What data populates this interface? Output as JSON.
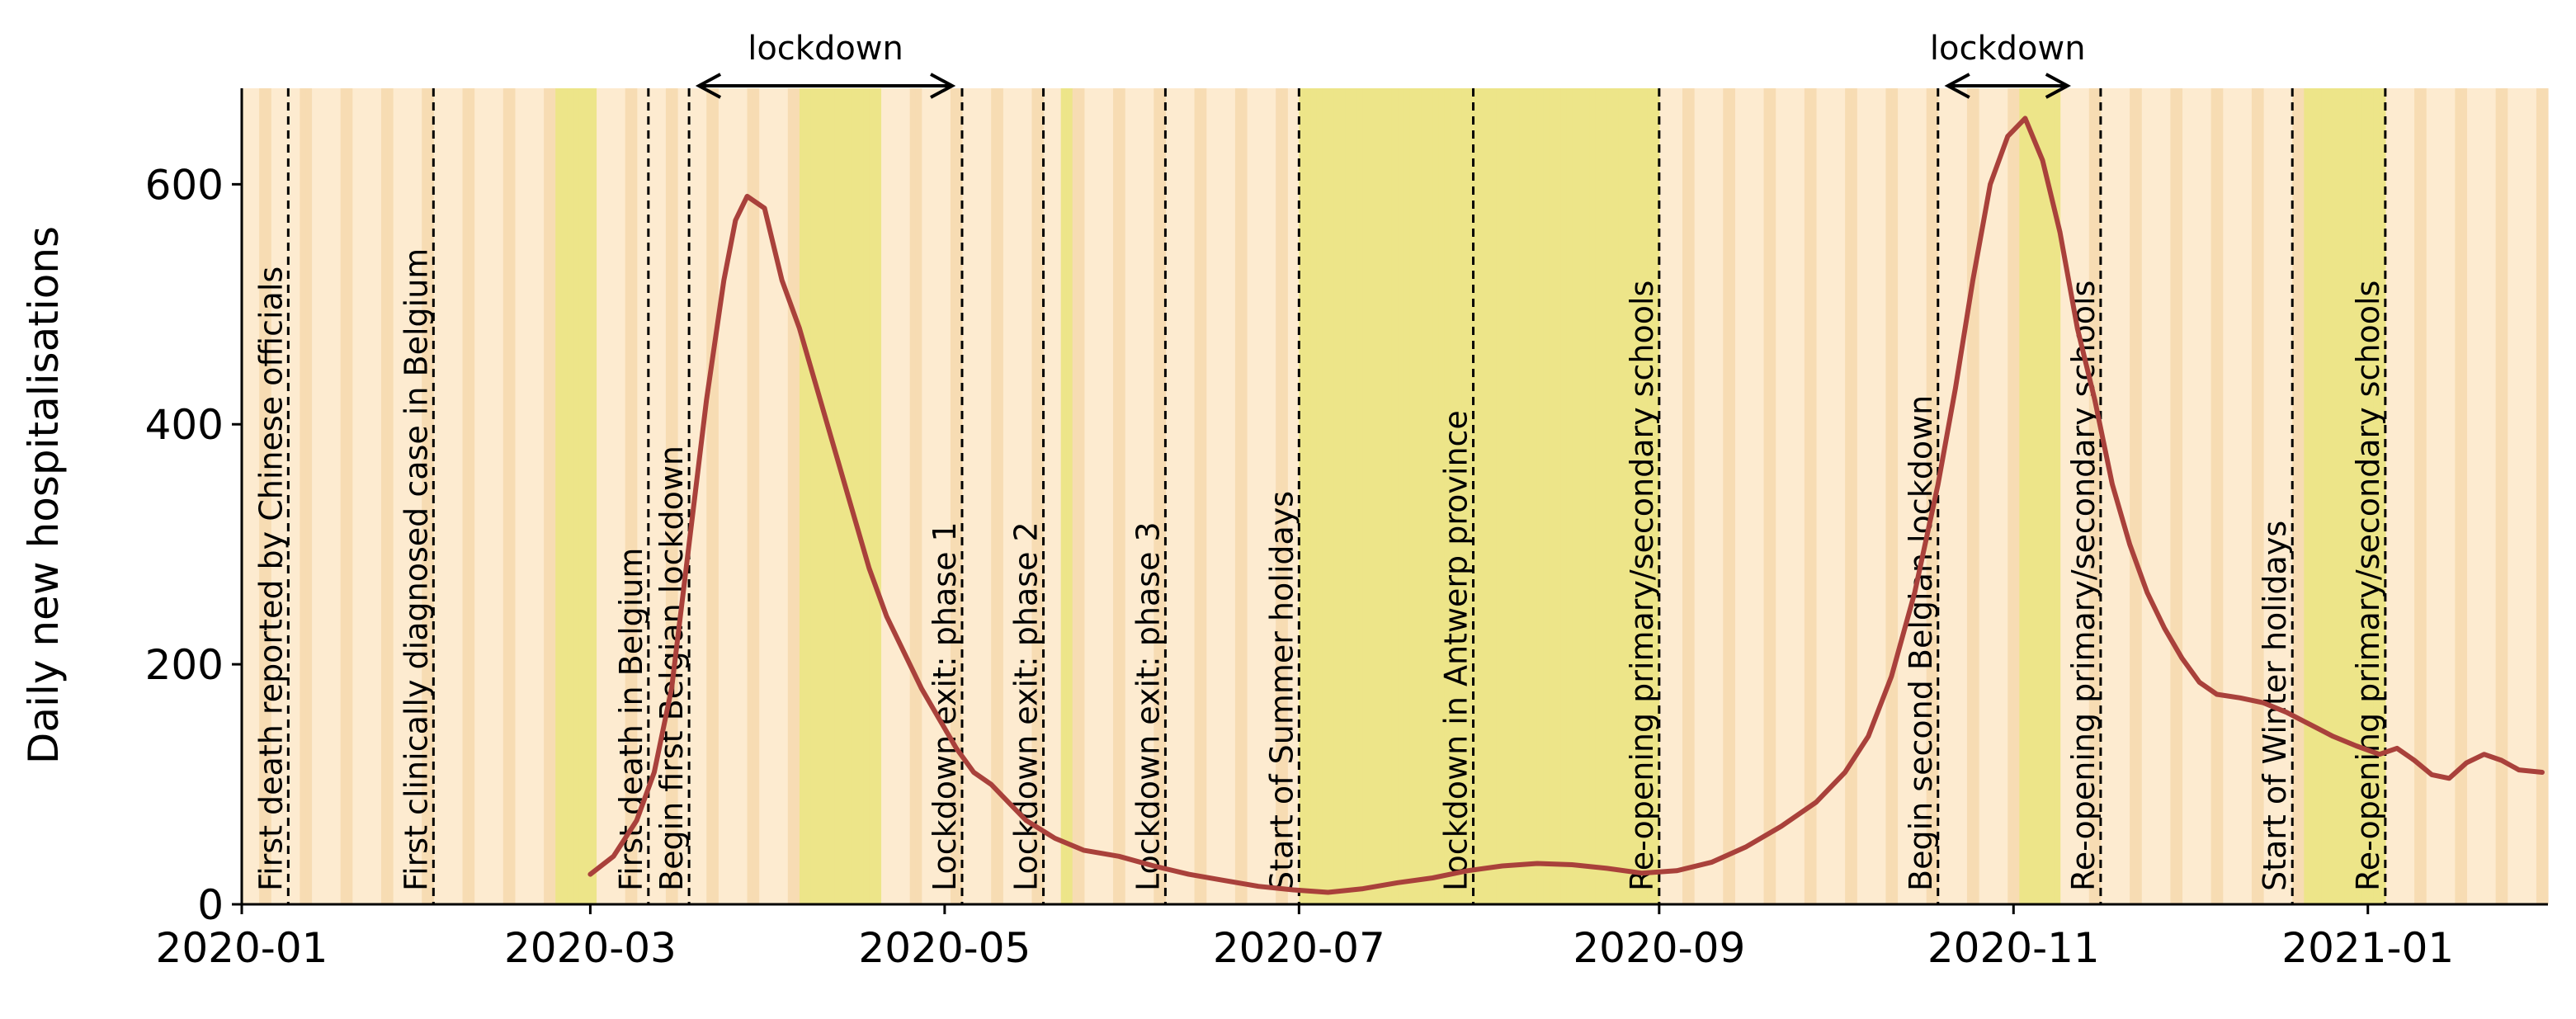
{
  "chart_data": {
    "type": "line",
    "title": "",
    "xlabel": "",
    "ylabel": "Daily new hospitalisations",
    "xlim": [
      "2020-01-01",
      "2021-02-01"
    ],
    "ylim": [
      0,
      680
    ],
    "x_ticks": [
      {
        "date": "2020-01-01",
        "label": "2020-01"
      },
      {
        "date": "2020-03-01",
        "label": "2020-03"
      },
      {
        "date": "2020-05-01",
        "label": "2020-05"
      },
      {
        "date": "2020-07-01",
        "label": "2020-07"
      },
      {
        "date": "2020-09-01",
        "label": "2020-09"
      },
      {
        "date": "2020-11-01",
        "label": "2020-11"
      },
      {
        "date": "2021-01-01",
        "label": "2021-01"
      }
    ],
    "y_ticks": [
      {
        "value": 0,
        "label": "0"
      },
      {
        "value": 200,
        "label": "200"
      },
      {
        "value": 400,
        "label": "400"
      },
      {
        "value": 600,
        "label": "600"
      }
    ],
    "grid": false,
    "series": [
      {
        "color": "#a9413b",
        "points": [
          [
            "2020-03-01",
            25
          ],
          [
            "2020-03-05",
            40
          ],
          [
            "2020-03-09",
            70
          ],
          [
            "2020-03-12",
            110
          ],
          [
            "2020-03-15",
            180
          ],
          [
            "2020-03-18",
            300
          ],
          [
            "2020-03-21",
            420
          ],
          [
            "2020-03-24",
            520
          ],
          [
            "2020-03-26",
            570
          ],
          [
            "2020-03-28",
            590
          ],
          [
            "2020-03-31",
            580
          ],
          [
            "2020-04-03",
            520
          ],
          [
            "2020-04-06",
            480
          ],
          [
            "2020-04-09",
            430
          ],
          [
            "2020-04-12",
            380
          ],
          [
            "2020-04-15",
            330
          ],
          [
            "2020-04-18",
            280
          ],
          [
            "2020-04-21",
            240
          ],
          [
            "2020-04-24",
            210
          ],
          [
            "2020-04-27",
            180
          ],
          [
            "2020-04-30",
            155
          ],
          [
            "2020-05-03",
            130
          ],
          [
            "2020-05-06",
            110
          ],
          [
            "2020-05-09",
            100
          ],
          [
            "2020-05-12",
            85
          ],
          [
            "2020-05-15",
            70
          ],
          [
            "2020-05-20",
            55
          ],
          [
            "2020-05-25",
            45
          ],
          [
            "2020-05-31",
            40
          ],
          [
            "2020-06-06",
            32
          ],
          [
            "2020-06-12",
            25
          ],
          [
            "2020-06-18",
            20
          ],
          [
            "2020-06-24",
            15
          ],
          [
            "2020-06-30",
            12
          ],
          [
            "2020-07-06",
            10
          ],
          [
            "2020-07-12",
            13
          ],
          [
            "2020-07-18",
            18
          ],
          [
            "2020-07-24",
            22
          ],
          [
            "2020-07-30",
            28
          ],
          [
            "2020-08-05",
            32
          ],
          [
            "2020-08-11",
            34
          ],
          [
            "2020-08-17",
            33
          ],
          [
            "2020-08-23",
            30
          ],
          [
            "2020-08-29",
            26
          ],
          [
            "2020-09-04",
            28
          ],
          [
            "2020-09-10",
            35
          ],
          [
            "2020-09-16",
            48
          ],
          [
            "2020-09-22",
            65
          ],
          [
            "2020-09-28",
            85
          ],
          [
            "2020-10-03",
            110
          ],
          [
            "2020-10-07",
            140
          ],
          [
            "2020-10-11",
            190
          ],
          [
            "2020-10-15",
            260
          ],
          [
            "2020-10-19",
            350
          ],
          [
            "2020-10-22",
            430
          ],
          [
            "2020-10-25",
            520
          ],
          [
            "2020-10-28",
            600
          ],
          [
            "2020-10-31",
            640
          ],
          [
            "2020-11-03",
            655
          ],
          [
            "2020-11-06",
            620
          ],
          [
            "2020-11-09",
            560
          ],
          [
            "2020-11-12",
            480
          ],
          [
            "2020-11-15",
            420
          ],
          [
            "2020-11-18",
            350
          ],
          [
            "2020-11-21",
            300
          ],
          [
            "2020-11-24",
            260
          ],
          [
            "2020-11-27",
            230
          ],
          [
            "2020-11-30",
            205
          ],
          [
            "2020-12-03",
            185
          ],
          [
            "2020-12-06",
            175
          ],
          [
            "2020-12-10",
            172
          ],
          [
            "2020-12-14",
            168
          ],
          [
            "2020-12-18",
            160
          ],
          [
            "2020-12-22",
            150
          ],
          [
            "2020-12-26",
            140
          ],
          [
            "2020-12-30",
            132
          ],
          [
            "2021-01-03",
            125
          ],
          [
            "2021-01-06",
            130
          ],
          [
            "2021-01-09",
            120
          ],
          [
            "2021-01-12",
            108
          ],
          [
            "2021-01-15",
            105
          ],
          [
            "2021-01-18",
            118
          ],
          [
            "2021-01-21",
            125
          ],
          [
            "2021-01-24",
            120
          ],
          [
            "2021-01-27",
            112
          ],
          [
            "2021-01-31",
            110
          ]
        ]
      }
    ],
    "events": [
      {
        "date": "2020-01-09",
        "label": "First death reported by Chinese officials"
      },
      {
        "date": "2020-02-03",
        "label": "First clinically diagnosed case in Belgium"
      },
      {
        "date": "2020-03-11",
        "label": "First death in Belgium"
      },
      {
        "date": "2020-03-18",
        "label": "Begin first Belgian lockdown"
      },
      {
        "date": "2020-05-04",
        "label": "Lockdown exit: phase 1"
      },
      {
        "date": "2020-05-18",
        "label": "Lockdown exit: phase 2"
      },
      {
        "date": "2020-06-08",
        "label": "Lockdown exit: phase 3"
      },
      {
        "date": "2020-07-01",
        "label": "Start of Summer holidays"
      },
      {
        "date": "2020-07-31",
        "label": "Lockdown in Antwerp province"
      },
      {
        "date": "2020-09-01",
        "label": "Re-opening primary/secondary schools"
      },
      {
        "date": "2020-10-19",
        "label": "Begin second Belgian lockdown"
      },
      {
        "date": "2020-11-16",
        "label": "Re-opening primary/secondary schools"
      },
      {
        "date": "2020-12-19",
        "label": "Start of Winter holidays"
      },
      {
        "date": "2021-01-04",
        "label": "Re-opening primary/secondary schools"
      }
    ],
    "lockdown_periods": [
      {
        "start": "2020-03-18",
        "end": "2020-05-04",
        "label": "lockdown"
      },
      {
        "start": "2020-10-19",
        "end": "2020-11-12",
        "label": "lockdown"
      }
    ],
    "holiday_periods": [
      {
        "start": "2020-02-24",
        "end": "2020-03-01"
      },
      {
        "start": "2020-04-06",
        "end": "2020-04-19"
      },
      {
        "start": "2020-05-21",
        "end": "2020-05-22"
      },
      {
        "start": "2020-07-01",
        "end": "2020-08-31"
      },
      {
        "start": "2020-11-02",
        "end": "2020-11-08"
      },
      {
        "start": "2020-12-21",
        "end": "2021-01-03"
      }
    ],
    "colors": {
      "workday": "#fdebd0",
      "weekend": "#f7dcb3",
      "holiday": "#ede589",
      "line": "#a9413b"
    }
  }
}
